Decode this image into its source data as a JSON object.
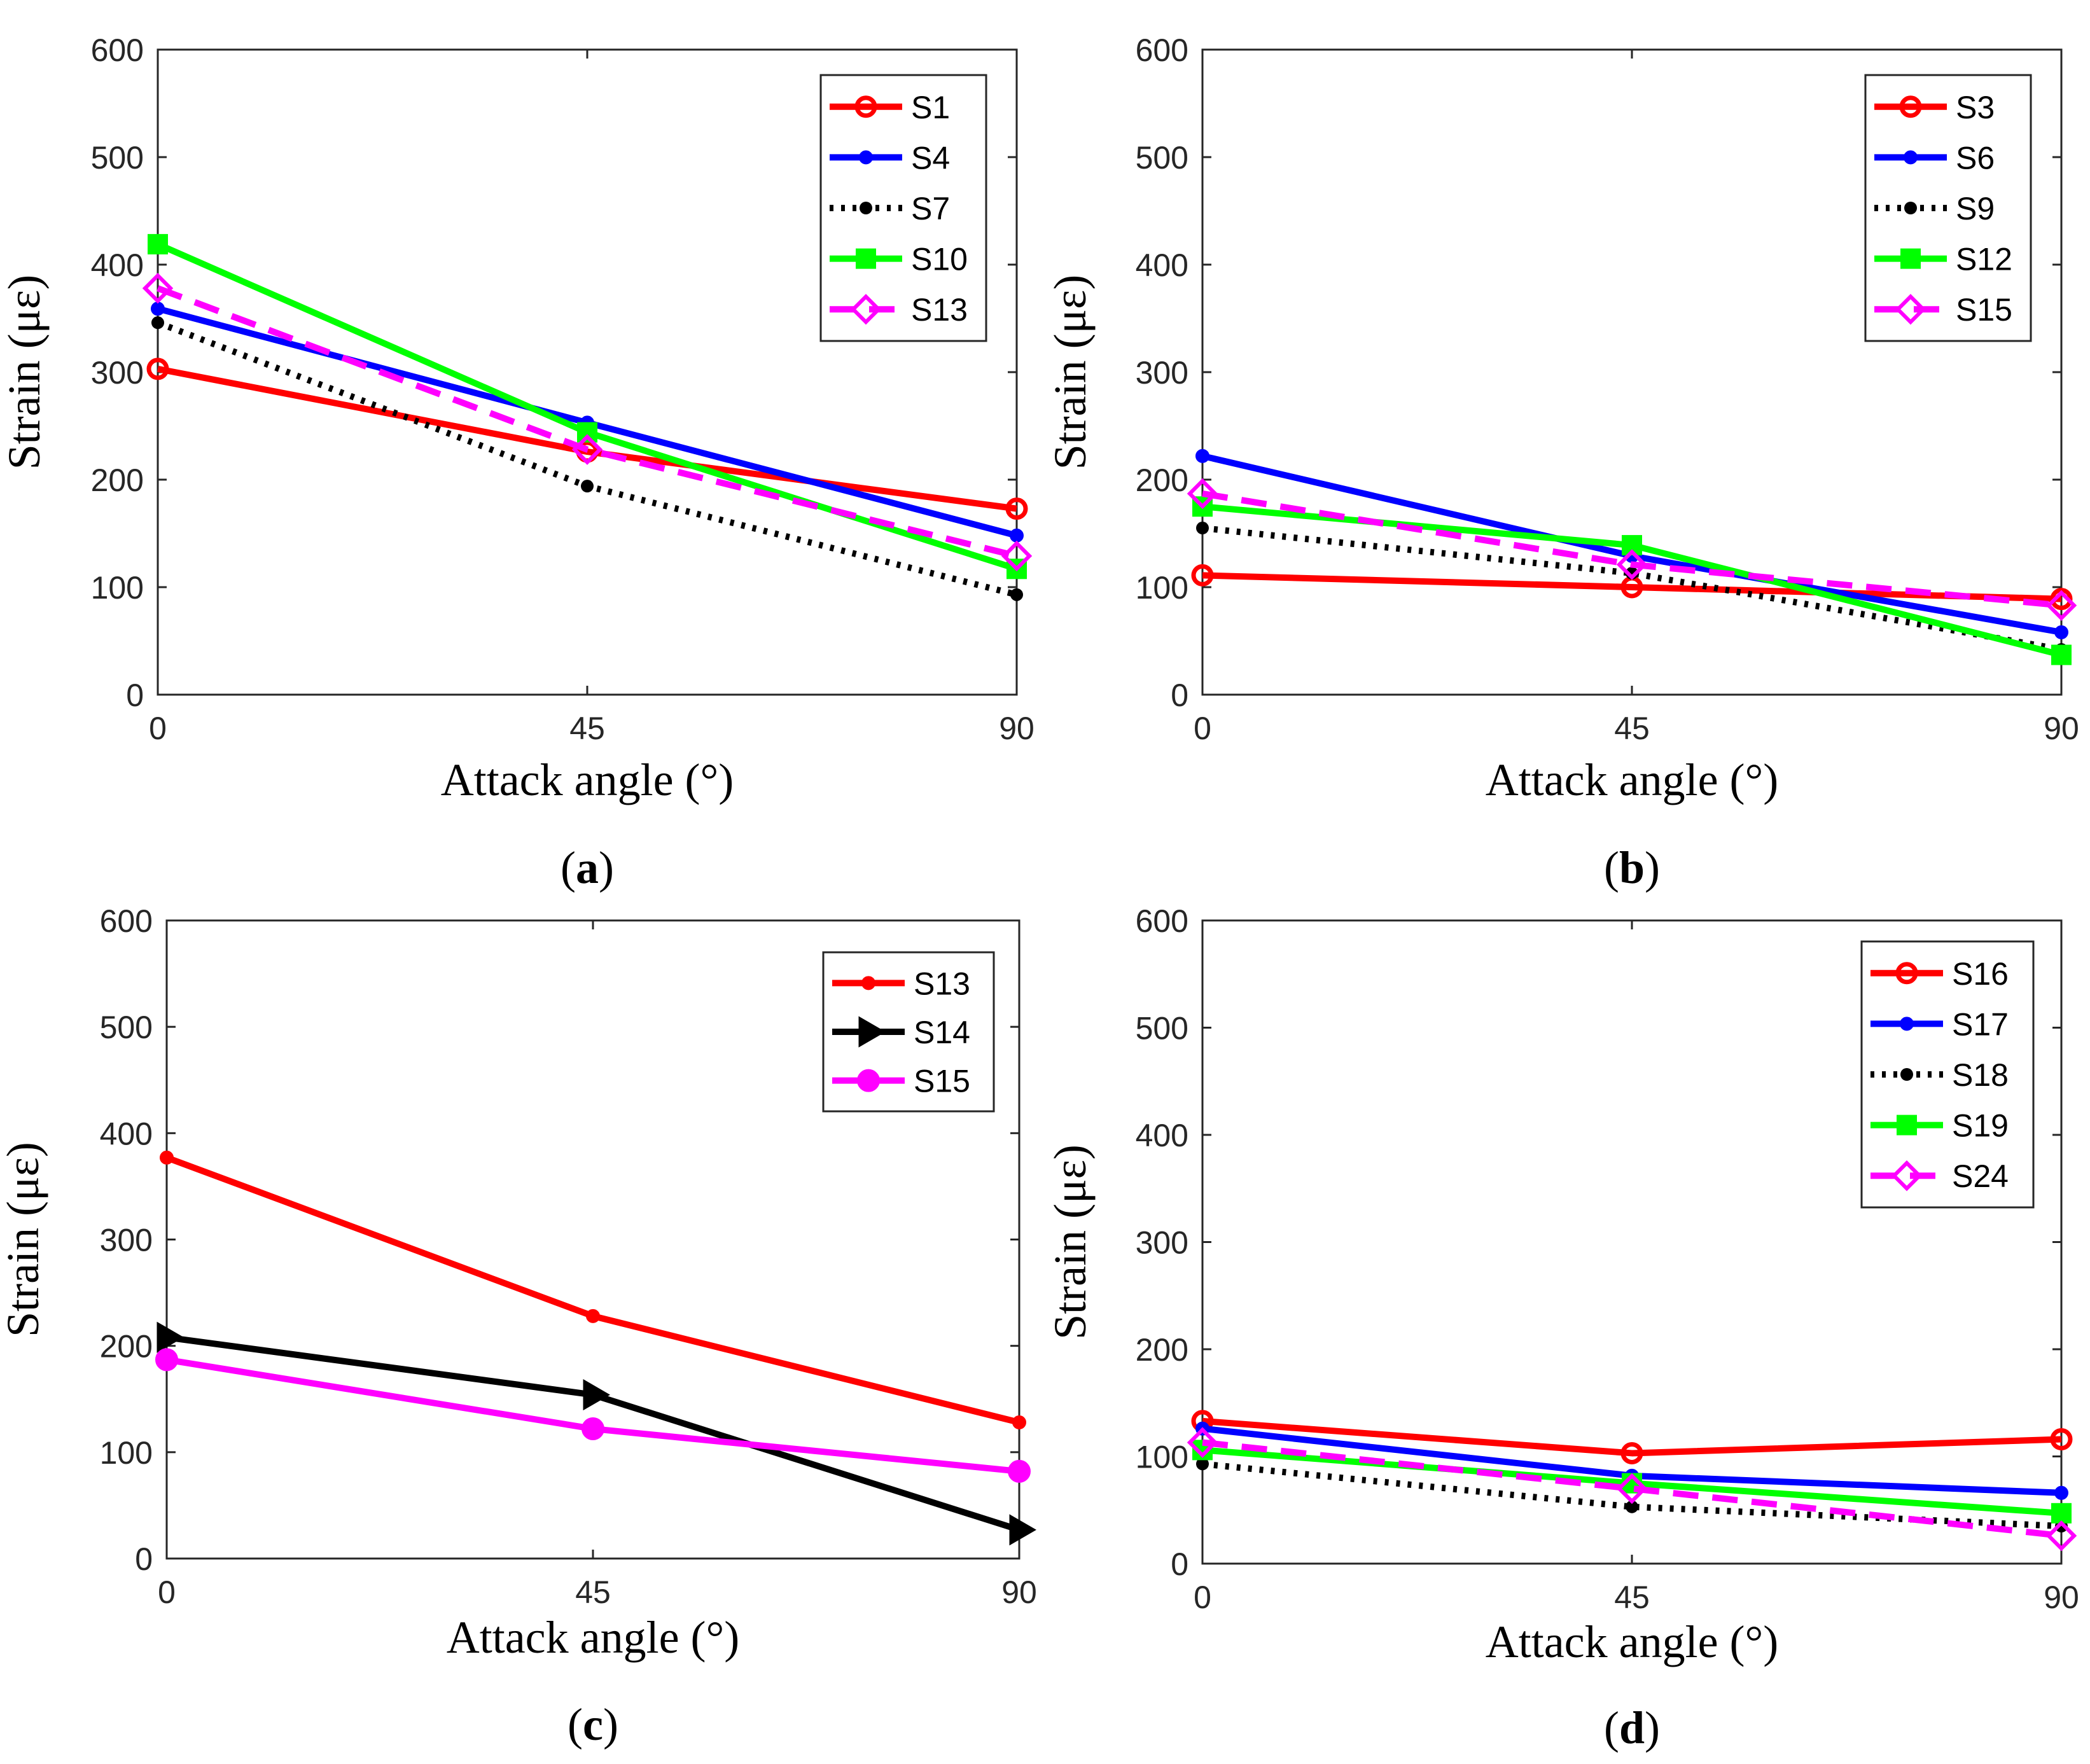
{
  "chart_data": [
    {
      "type": "line",
      "caption": "a",
      "xlabel": "Attack angle (°)",
      "ylabel": "Strain  (με)",
      "x": [
        0,
        45,
        90
      ],
      "xticks": [
        "0",
        "45",
        "90"
      ],
      "yticks": [
        "0",
        "100",
        "200",
        "300",
        "400",
        "500",
        "600"
      ],
      "ylim": [
        0,
        600
      ],
      "legend_position": "top-right",
      "series": [
        {
          "name": "S1",
          "values": [
            303,
            226,
            173
          ],
          "color": "#ff0000",
          "style": "solid",
          "marker": "circle"
        },
        {
          "name": "S4",
          "values": [
            359,
            253,
            148
          ],
          "color": "#0000ff",
          "style": "solid",
          "marker": "dot"
        },
        {
          "name": "S7",
          "values": [
            346,
            194,
            93
          ],
          "color": "#000000",
          "style": "dotted",
          "marker": "star"
        },
        {
          "name": "S10",
          "values": [
            419,
            244,
            117
          ],
          "color": "#00ff00",
          "style": "solid",
          "marker": "square"
        },
        {
          "name": "S13",
          "values": [
            378,
            228,
            129
          ],
          "color": "#ff00ff",
          "style": "dashed",
          "marker": "diamond"
        }
      ]
    },
    {
      "type": "line",
      "caption": "b",
      "xlabel": "Attack angle (°)",
      "ylabel": "Strain  (με)",
      "x": [
        0,
        45,
        90
      ],
      "xticks": [
        "0",
        "45",
        "90"
      ],
      "yticks": [
        "0",
        "100",
        "200",
        "300",
        "400",
        "500",
        "600"
      ],
      "ylim": [
        0,
        600
      ],
      "legend_position": "top-right",
      "series": [
        {
          "name": "S3",
          "values": [
            111,
            100,
            89
          ],
          "color": "#ff0000",
          "style": "solid",
          "marker": "circle"
        },
        {
          "name": "S6",
          "values": [
            222,
            129,
            58
          ],
          "color": "#0000ff",
          "style": "solid",
          "marker": "dot"
        },
        {
          "name": "S9",
          "values": [
            155,
            113,
            42
          ],
          "color": "#000000",
          "style": "dotted",
          "marker": "star"
        },
        {
          "name": "S12",
          "values": [
            175,
            139,
            37
          ],
          "color": "#00ff00",
          "style": "solid",
          "marker": "square"
        },
        {
          "name": "S15",
          "values": [
            187,
            121,
            83
          ],
          "color": "#ff00ff",
          "style": "dashed",
          "marker": "diamond"
        }
      ]
    },
    {
      "type": "line",
      "caption": "c",
      "xlabel": "Attack angle (°)",
      "ylabel": "Strain  (με)",
      "x": [
        0,
        45,
        90
      ],
      "xticks": [
        "0",
        "45",
        "90"
      ],
      "yticks": [
        "0",
        "100",
        "200",
        "300",
        "400",
        "500",
        "600"
      ],
      "ylim": [
        0,
        600
      ],
      "legend_position": "top-right",
      "series": [
        {
          "name": "S13",
          "values": [
            377,
            228,
            128
          ],
          "color": "#ff0000",
          "style": "solid",
          "marker": "dot"
        },
        {
          "name": "S14",
          "values": [
            208,
            154,
            27
          ],
          "color": "#000000",
          "style": "solid",
          "marker": "triangle-right"
        },
        {
          "name": "S15",
          "values": [
            187,
            122,
            82
          ],
          "color": "#ff00ff",
          "style": "solid",
          "marker": "circle-filled"
        }
      ]
    },
    {
      "type": "line",
      "caption": "d",
      "xlabel": "Attack angle (°)",
      "ylabel": "Strain  (με)",
      "x": [
        0,
        45,
        90
      ],
      "xticks": [
        "0",
        "45",
        "90"
      ],
      "yticks": [
        "0",
        "100",
        "200",
        "300",
        "400",
        "500",
        "600"
      ],
      "ylim": [
        0,
        600
      ],
      "legend_position": "top-right",
      "series": [
        {
          "name": "S16",
          "values": [
            133,
            103,
            116
          ],
          "color": "#ff0000",
          "style": "solid",
          "marker": "circle"
        },
        {
          "name": "S17",
          "values": [
            126,
            82,
            66
          ],
          "color": "#0000ff",
          "style": "solid",
          "marker": "dot"
        },
        {
          "name": "S18",
          "values": [
            93,
            53,
            35
          ],
          "color": "#000000",
          "style": "dotted",
          "marker": "star"
        },
        {
          "name": "S19",
          "values": [
            106,
            75,
            47
          ],
          "color": "#00ff00",
          "style": "solid",
          "marker": "square"
        },
        {
          "name": "S24",
          "values": [
            113,
            70,
            26
          ],
          "color": "#ff00ff",
          "style": "dashed",
          "marker": "diamond"
        }
      ]
    }
  ]
}
